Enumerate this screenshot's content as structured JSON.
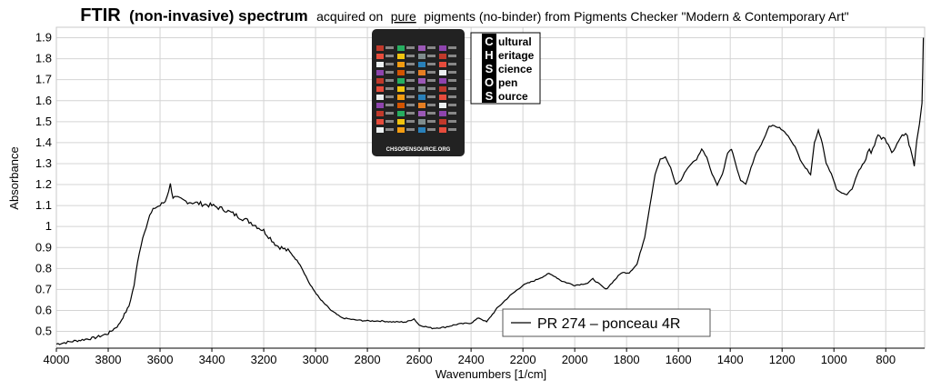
{
  "chart_data": {
    "type": "line",
    "title_bold_1": "FTIR",
    "title_bold_2": "(non-invasive) spectrum",
    "title_rest_1": "acquired on",
    "title_underlined": "pure",
    "title_rest_2": "pigments (no-binder) from Pigments Checker \"Modern & Contemporary Art\"",
    "xlabel": "Wavenumbers [1/cm]",
    "ylabel": "Absorbance",
    "xlim": [
      4000,
      650
    ],
    "ylim": [
      0.42,
      1.95
    ],
    "x_ticks": [
      "4000",
      "3800",
      "3600",
      "3400",
      "3200",
      "3000",
      "2800",
      "2600",
      "2400",
      "2200",
      "2000",
      "1800",
      "1600",
      "1400",
      "1200",
      "1000",
      "800"
    ],
    "y_ticks": [
      "0.5",
      "0.6",
      "0.7",
      "0.8",
      "0.9",
      "1",
      "1.1",
      "1.2",
      "1.3",
      "1.4",
      "1.5",
      "1.6",
      "1.7",
      "1.8",
      "1.9"
    ],
    "grid": true,
    "legend_position": "bottom-center",
    "series": [
      {
        "name": "PR 274 – ponceau 4R",
        "color": "#000000",
        "points": [
          [
            4000,
            0.44
          ],
          [
            3950,
            0.45
          ],
          [
            3900,
            0.46
          ],
          [
            3850,
            0.47
          ],
          [
            3800,
            0.49
          ],
          [
            3760,
            0.53
          ],
          [
            3720,
            0.62
          ],
          [
            3700,
            0.72
          ],
          [
            3680,
            0.88
          ],
          [
            3660,
            0.98
          ],
          [
            3640,
            1.05
          ],
          [
            3620,
            1.09
          ],
          [
            3600,
            1.1
          ],
          [
            3580,
            1.12
          ],
          [
            3560,
            1.2
          ],
          [
            3550,
            1.14
          ],
          [
            3500,
            1.12
          ],
          [
            3450,
            1.11
          ],
          [
            3400,
            1.1
          ],
          [
            3350,
            1.08
          ],
          [
            3300,
            1.05
          ],
          [
            3250,
            1.02
          ],
          [
            3200,
            0.98
          ],
          [
            3150,
            0.91
          ],
          [
            3100,
            0.88
          ],
          [
            3060,
            0.82
          ],
          [
            3020,
            0.72
          ],
          [
            2980,
            0.65
          ],
          [
            2940,
            0.6
          ],
          [
            2900,
            0.565
          ],
          [
            2850,
            0.555
          ],
          [
            2800,
            0.55
          ],
          [
            2750,
            0.55
          ],
          [
            2700,
            0.545
          ],
          [
            2650,
            0.545
          ],
          [
            2620,
            0.56
          ],
          [
            2600,
            0.53
          ],
          [
            2550,
            0.515
          ],
          [
            2500,
            0.52
          ],
          [
            2450,
            0.535
          ],
          [
            2400,
            0.54
          ],
          [
            2370,
            0.565
          ],
          [
            2340,
            0.545
          ],
          [
            2300,
            0.61
          ],
          [
            2250,
            0.67
          ],
          [
            2200,
            0.72
          ],
          [
            2150,
            0.745
          ],
          [
            2100,
            0.775
          ],
          [
            2080,
            0.765
          ],
          [
            2050,
            0.74
          ],
          [
            2000,
            0.72
          ],
          [
            1950,
            0.73
          ],
          [
            1930,
            0.75
          ],
          [
            1900,
            0.72
          ],
          [
            1880,
            0.7
          ],
          [
            1850,
            0.74
          ],
          [
            1820,
            0.78
          ],
          [
            1790,
            0.78
          ],
          [
            1760,
            0.82
          ],
          [
            1730,
            0.95
          ],
          [
            1710,
            1.1
          ],
          [
            1690,
            1.25
          ],
          [
            1670,
            1.32
          ],
          [
            1650,
            1.33
          ],
          [
            1630,
            1.28
          ],
          [
            1610,
            1.2
          ],
          [
            1590,
            1.22
          ],
          [
            1570,
            1.27
          ],
          [
            1550,
            1.3
          ],
          [
            1530,
            1.32
          ],
          [
            1510,
            1.37
          ],
          [
            1490,
            1.33
          ],
          [
            1470,
            1.25
          ],
          [
            1450,
            1.2
          ],
          [
            1430,
            1.25
          ],
          [
            1410,
            1.35
          ],
          [
            1395,
            1.37
          ],
          [
            1380,
            1.3
          ],
          [
            1360,
            1.22
          ],
          [
            1340,
            1.2
          ],
          [
            1320,
            1.28
          ],
          [
            1300,
            1.35
          ],
          [
            1285,
            1.38
          ],
          [
            1270,
            1.42
          ],
          [
            1250,
            1.48
          ],
          [
            1230,
            1.48
          ],
          [
            1210,
            1.47
          ],
          [
            1190,
            1.45
          ],
          [
            1170,
            1.42
          ],
          [
            1150,
            1.38
          ],
          [
            1130,
            1.32
          ],
          [
            1110,
            1.28
          ],
          [
            1090,
            1.25
          ],
          [
            1075,
            1.4
          ],
          [
            1060,
            1.46
          ],
          [
            1045,
            1.4
          ],
          [
            1030,
            1.3
          ],
          [
            1010,
            1.25
          ],
          [
            990,
            1.18
          ],
          [
            970,
            1.16
          ],
          [
            950,
            1.15
          ],
          [
            930,
            1.18
          ],
          [
            910,
            1.25
          ],
          [
            890,
            1.3
          ],
          [
            870,
            1.34
          ],
          [
            850,
            1.38
          ],
          [
            830,
            1.42
          ],
          [
            810,
            1.43
          ],
          [
            790,
            1.38
          ],
          [
            770,
            1.35
          ],
          [
            750,
            1.4
          ],
          [
            730,
            1.45
          ],
          [
            710,
            1.4
          ],
          [
            700,
            1.35
          ],
          [
            690,
            1.3
          ],
          [
            680,
            1.42
          ],
          [
            670,
            1.5
          ],
          [
            660,
            1.6
          ],
          [
            655,
            1.9
          ]
        ]
      }
    ]
  },
  "logo": {
    "letters": [
      "C",
      "H",
      "S",
      "O",
      "S"
    ],
    "words": [
      "ultural",
      "eritage",
      "cience",
      "pen",
      "ource"
    ],
    "card_caption": "CHSOPENSOURCE.ORG"
  }
}
